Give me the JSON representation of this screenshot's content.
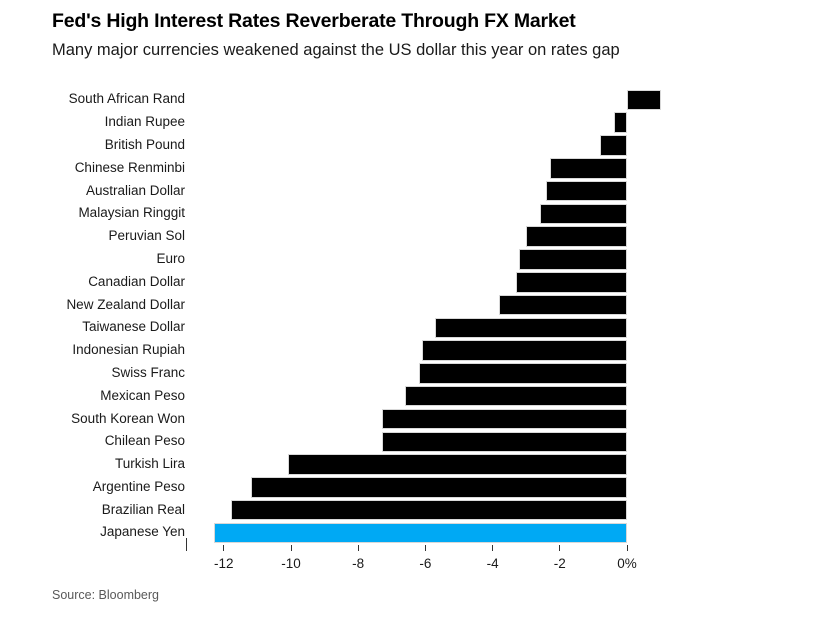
{
  "header": {
    "title": "Fed's High Interest Rates Reverberate Through FX Market",
    "subtitle": "Many major currencies weakened against the US dollar this year on rates gap"
  },
  "footer": {
    "source": "Source: Bloomberg"
  },
  "chart_data": {
    "type": "bar",
    "orientation": "horizontal",
    "title": "Fed's High Interest Rates Reverberate Through FX Market",
    "subtitle": "Many major currencies weakened against the US dollar this year on rates gap",
    "unit": "%",
    "categories": [
      "South African Rand",
      "Indian Rupee",
      "British Pound",
      "Chinese Renminbi",
      "Australian Dollar",
      "Malaysian Ringgit",
      "Peruvian Sol",
      "Euro",
      "Canadian Dollar",
      "New Zealand Dollar",
      "Taiwanese Dollar",
      "Indonesian Rupiah",
      "Swiss Franc",
      "Mexican Peso",
      "South Korean Won",
      "Chilean Peso",
      "Turkish Lira",
      "Argentine Peso",
      "Brazilian Real",
      "Japanese Yen"
    ],
    "values": [
      1.0,
      -0.4,
      -0.8,
      -2.3,
      -2.4,
      -2.6,
      -3.0,
      -3.2,
      -3.3,
      -3.8,
      -5.7,
      -6.1,
      -6.2,
      -6.6,
      -7.3,
      -7.3,
      -10.1,
      -11.2,
      -11.8,
      -12.3
    ],
    "highlight_category": "Japanese Yen",
    "colors": {
      "bar": "#000000",
      "highlight": "#00a9f4",
      "bar_outline": "#d8d8d8",
      "tick": "#333333",
      "label_text": "#1a1a1a",
      "source_text": "#595959"
    },
    "x_axis": {
      "ticks": [
        -12,
        -10,
        -8,
        -6,
        -4,
        -2,
        0
      ],
      "tick_labels": [
        "-12",
        "-10",
        "-8",
        "-6",
        "-4",
        "-2",
        "0%"
      ],
      "xlim": [
        -12.6,
        1.2
      ],
      "grid": false
    },
    "legend": null
  }
}
